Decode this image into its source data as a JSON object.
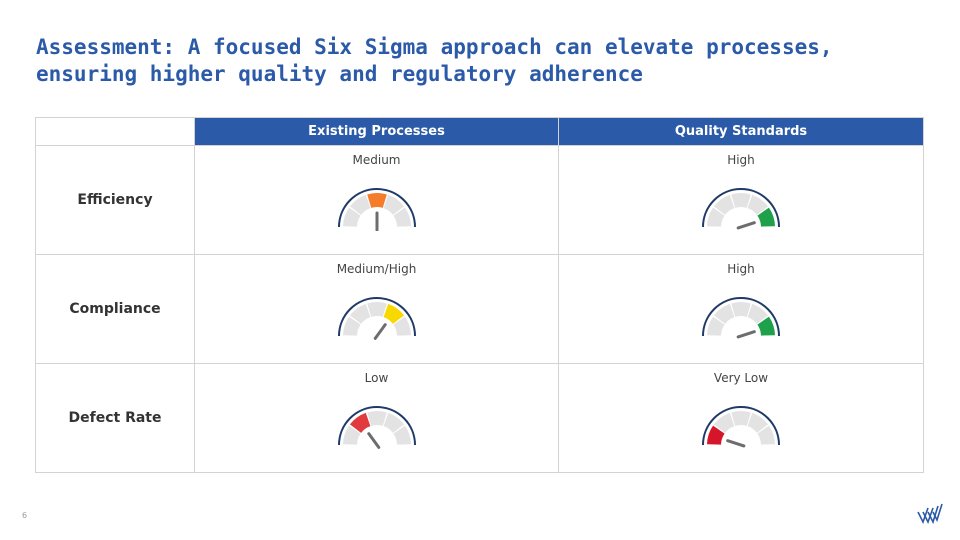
{
  "slide": {
    "title_line1": "Assessment: A focused Six Sigma approach can elevate processes,",
    "title_line2": "ensuring higher quality and regulatory adherence",
    "page_number": "6"
  },
  "table": {
    "columns": [
      "Existing Processes",
      "Quality Standards"
    ],
    "rows": [
      {
        "label": "Efficiency",
        "cells": [
          {
            "level": "Medium",
            "segment": 2,
            "color": "#f47c2b"
          },
          {
            "level": "High",
            "segment": 4,
            "color": "#1fa04a"
          }
        ]
      },
      {
        "label": "Compliance",
        "cells": [
          {
            "level": "Medium/High",
            "segment": 3,
            "color": "#f7d800"
          },
          {
            "level": "High",
            "segment": 4,
            "color": "#1fa04a"
          }
        ]
      },
      {
        "label": "Defect Rate",
        "cells": [
          {
            "level": "Low",
            "segment": 1,
            "color": "#e03a3e"
          },
          {
            "level": "Very Low",
            "segment": 0,
            "color": "#d6152a"
          }
        ]
      }
    ]
  },
  "gauge_style": {
    "inactive_color": "#e3e3e3",
    "rim_color": "#1f3a68",
    "needle_color": "#6d6d6d",
    "segments_total": 5
  },
  "logo": {
    "icon": "chevron-stripes-logo-icon",
    "color": "#2b5aa8"
  }
}
